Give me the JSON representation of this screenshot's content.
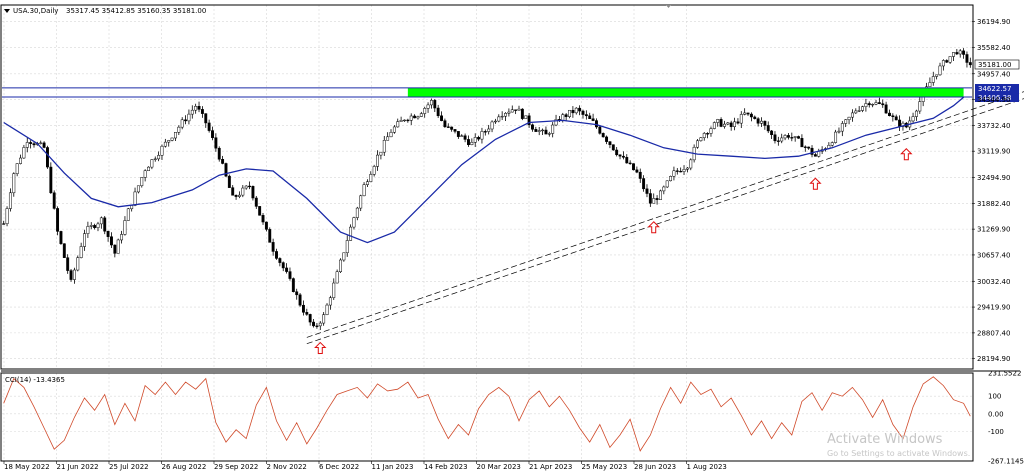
{
  "header": {
    "symbol_line": "USA.30,Daily",
    "ohlc": "35317.45 35412.85 35160.35 35181.00"
  },
  "colors": {
    "candle_fill": "#ffffff",
    "candle_line": "#000000",
    "ma_line": "#1a2aa8",
    "zone_green": "#00ff00",
    "level_line": "#1a2aa8",
    "cci_line": "#d04a2a",
    "arrow": "#e01010",
    "trend_line": "#000000",
    "grid": "#d8d8d8"
  },
  "watermark": {
    "line1": "Activate Windows",
    "line2": "Go to Settings to activate Windows."
  },
  "chart_data": [
    {
      "type": "candlestick",
      "x_tick_labels": [
        "18 May 2022",
        "21 Jun 2022",
        "25 Jul 2022",
        "26 Aug 2022",
        "29 Sep 2022",
        "2 Nov 2022",
        "6 Dec 2022",
        "11 Jan 2023",
        "14 Feb 2023",
        "20 Mar 2023",
        "21 Apr 2023",
        "25 May 2023",
        "28 Jun 2023",
        "1 Aug 2023"
      ],
      "y_tick_labels": [
        "36194.90",
        "35582.40",
        "34957.40",
        "34344.90",
        "33732.40",
        "33119.90",
        "32494.90",
        "31882.40",
        "31269.90",
        "30657.40",
        "30032.40",
        "29419.90",
        "28807.40",
        "28194.90"
      ],
      "ylim": [
        27950,
        36590
      ],
      "current_price_label": "35181.00",
      "levels": [
        {
          "label": "34622.57",
          "value": 34622.57
        },
        {
          "label": "34406.38",
          "value": 34406.38
        }
      ],
      "resistance_zone": {
        "from": 34406.38,
        "to": 34622.57,
        "start_index": 120,
        "end_index": 285
      },
      "support_touch_indices": [
        94,
        193,
        241,
        268
      ],
      "close_path": [
        {
          "i": 0,
          "v": 31400
        },
        {
          "i": 3,
          "v": 32600
        },
        {
          "i": 7,
          "v": 33400
        },
        {
          "i": 12,
          "v": 33200
        },
        {
          "i": 16,
          "v": 31200
        },
        {
          "i": 20,
          "v": 30000
        },
        {
          "i": 24,
          "v": 31200
        },
        {
          "i": 29,
          "v": 31500
        },
        {
          "i": 33,
          "v": 30700
        },
        {
          "i": 37,
          "v": 31700
        },
        {
          "i": 42,
          "v": 32700
        },
        {
          "i": 47,
          "v": 33200
        },
        {
          "i": 52,
          "v": 33700
        },
        {
          "i": 57,
          "v": 34200
        },
        {
          "i": 60,
          "v": 33800
        },
        {
          "i": 64,
          "v": 33000
        },
        {
          "i": 68,
          "v": 32000
        },
        {
          "i": 73,
          "v": 32300
        },
        {
          "i": 77,
          "v": 31400
        },
        {
          "i": 80,
          "v": 30800
        },
        {
          "i": 84,
          "v": 30200
        },
        {
          "i": 88,
          "v": 29500
        },
        {
          "i": 92,
          "v": 28900
        },
        {
          "i": 95,
          "v": 29200
        },
        {
          "i": 99,
          "v": 30200
        },
        {
          "i": 103,
          "v": 31300
        },
        {
          "i": 107,
          "v": 32300
        },
        {
          "i": 111,
          "v": 33000
        },
        {
          "i": 115,
          "v": 33600
        },
        {
          "i": 119,
          "v": 33900
        },
        {
          "i": 123,
          "v": 34000
        },
        {
          "i": 127,
          "v": 34300
        },
        {
          "i": 131,
          "v": 33700
        },
        {
          "i": 135,
          "v": 33500
        },
        {
          "i": 139,
          "v": 33300
        },
        {
          "i": 143,
          "v": 33600
        },
        {
          "i": 147,
          "v": 34000
        },
        {
          "i": 152,
          "v": 34150
        },
        {
          "i": 157,
          "v": 33700
        },
        {
          "i": 161,
          "v": 33500
        },
        {
          "i": 165,
          "v": 33900
        },
        {
          "i": 170,
          "v": 34100
        },
        {
          "i": 175,
          "v": 33800
        },
        {
          "i": 179,
          "v": 33400
        },
        {
          "i": 183,
          "v": 33000
        },
        {
          "i": 188,
          "v": 32600
        },
        {
          "i": 192,
          "v": 31900
        },
        {
          "i": 195,
          "v": 32100
        },
        {
          "i": 199,
          "v": 32600
        },
        {
          "i": 203,
          "v": 32800
        },
        {
          "i": 207,
          "v": 33500
        },
        {
          "i": 212,
          "v": 33800
        },
        {
          "i": 216,
          "v": 33700
        },
        {
          "i": 220,
          "v": 34000
        },
        {
          "i": 225,
          "v": 33800
        },
        {
          "i": 229,
          "v": 33400
        },
        {
          "i": 233,
          "v": 33500
        },
        {
          "i": 237,
          "v": 33300
        },
        {
          "i": 241,
          "v": 33000
        },
        {
          "i": 245,
          "v": 33300
        },
        {
          "i": 249,
          "v": 33700
        },
        {
          "i": 253,
          "v": 34100
        },
        {
          "i": 257,
          "v": 34300
        },
        {
          "i": 261,
          "v": 34200
        },
        {
          "i": 265,
          "v": 33800
        },
        {
          "i": 268,
          "v": 33700
        },
        {
          "i": 272,
          "v": 34300
        },
        {
          "i": 276,
          "v": 34900
        },
        {
          "i": 280,
          "v": 35300
        },
        {
          "i": 283,
          "v": 35500
        },
        {
          "i": 285,
          "v": 35350
        },
        {
          "i": 287,
          "v": 35181
        }
      ],
      "ma_path": [
        {
          "i": 0,
          "v": 33800
        },
        {
          "i": 10,
          "v": 33300
        },
        {
          "i": 18,
          "v": 32600
        },
        {
          "i": 26,
          "v": 32000
        },
        {
          "i": 34,
          "v": 31800
        },
        {
          "i": 44,
          "v": 31900
        },
        {
          "i": 56,
          "v": 32200
        },
        {
          "i": 64,
          "v": 32550
        },
        {
          "i": 72,
          "v": 32700
        },
        {
          "i": 80,
          "v": 32650
        },
        {
          "i": 90,
          "v": 32000
        },
        {
          "i": 100,
          "v": 31200
        },
        {
          "i": 108,
          "v": 30950
        },
        {
          "i": 116,
          "v": 31200
        },
        {
          "i": 126,
          "v": 32000
        },
        {
          "i": 136,
          "v": 32800
        },
        {
          "i": 146,
          "v": 33400
        },
        {
          "i": 156,
          "v": 33800
        },
        {
          "i": 166,
          "v": 33850
        },
        {
          "i": 176,
          "v": 33750
        },
        {
          "i": 186,
          "v": 33500
        },
        {
          "i": 196,
          "v": 33200
        },
        {
          "i": 206,
          "v": 33050
        },
        {
          "i": 216,
          "v": 33000
        },
        {
          "i": 226,
          "v": 32950
        },
        {
          "i": 236,
          "v": 33000
        },
        {
          "i": 246,
          "v": 33200
        },
        {
          "i": 256,
          "v": 33500
        },
        {
          "i": 266,
          "v": 33700
        },
        {
          "i": 276,
          "v": 33900
        },
        {
          "i": 282,
          "v": 34200
        },
        {
          "i": 285,
          "v": 34400
        }
      ],
      "trend_lines": [
        {
          "from": {
            "i": 90,
            "v": 28700
          },
          "to": {
            "i": 378,
            "v": 36590
          }
        },
        {
          "from": {
            "i": 90,
            "v": 28550
          },
          "to": {
            "i": 378,
            "v": 36420
          }
        }
      ]
    },
    {
      "type": "line",
      "indicator_label": "CCI(14) -13.4365",
      "y_tick_labels": [
        "231.5522",
        "100",
        "0.00",
        "-100",
        "-267.1145"
      ],
      "ylim": [
        -267.1145,
        231.5522
      ],
      "path": [
        {
          "i": 0,
          "v": 60
        },
        {
          "i": 3,
          "v": 200
        },
        {
          "i": 6,
          "v": 150
        },
        {
          "i": 9,
          "v": 40
        },
        {
          "i": 12,
          "v": -80
        },
        {
          "i": 15,
          "v": -200
        },
        {
          "i": 18,
          "v": -150
        },
        {
          "i": 21,
          "v": -20
        },
        {
          "i": 24,
          "v": 90
        },
        {
          "i": 27,
          "v": 20
        },
        {
          "i": 30,
          "v": 110
        },
        {
          "i": 33,
          "v": -60
        },
        {
          "i": 36,
          "v": 60
        },
        {
          "i": 39,
          "v": -40
        },
        {
          "i": 42,
          "v": 160
        },
        {
          "i": 45,
          "v": 110
        },
        {
          "i": 48,
          "v": 180
        },
        {
          "i": 51,
          "v": 110
        },
        {
          "i": 54,
          "v": 180
        },
        {
          "i": 57,
          "v": 140
        },
        {
          "i": 60,
          "v": 200
        },
        {
          "i": 63,
          "v": -50
        },
        {
          "i": 66,
          "v": -160
        },
        {
          "i": 69,
          "v": -90
        },
        {
          "i": 72,
          "v": -140
        },
        {
          "i": 75,
          "v": 50
        },
        {
          "i": 78,
          "v": 150
        },
        {
          "i": 81,
          "v": -40
        },
        {
          "i": 84,
          "v": -150
        },
        {
          "i": 87,
          "v": -50
        },
        {
          "i": 90,
          "v": -170
        },
        {
          "i": 93,
          "v": -80
        },
        {
          "i": 96,
          "v": 20
        },
        {
          "i": 99,
          "v": 110
        },
        {
          "i": 102,
          "v": 130
        },
        {
          "i": 105,
          "v": 150
        },
        {
          "i": 108,
          "v": 90
        },
        {
          "i": 111,
          "v": 170
        },
        {
          "i": 114,
          "v": 130
        },
        {
          "i": 117,
          "v": 140
        },
        {
          "i": 120,
          "v": 180
        },
        {
          "i": 123,
          "v": 90
        },
        {
          "i": 126,
          "v": 110
        },
        {
          "i": 129,
          "v": -30
        },
        {
          "i": 132,
          "v": -140
        },
        {
          "i": 135,
          "v": -60
        },
        {
          "i": 138,
          "v": -120
        },
        {
          "i": 141,
          "v": 30
        },
        {
          "i": 144,
          "v": 110
        },
        {
          "i": 147,
          "v": 150
        },
        {
          "i": 150,
          "v": 100
        },
        {
          "i": 153,
          "v": -40
        },
        {
          "i": 156,
          "v": 80
        },
        {
          "i": 159,
          "v": 130
        },
        {
          "i": 162,
          "v": 40
        },
        {
          "i": 165,
          "v": 100
        },
        {
          "i": 168,
          "v": 20
        },
        {
          "i": 171,
          "v": -80
        },
        {
          "i": 174,
          "v": -160
        },
        {
          "i": 177,
          "v": -60
        },
        {
          "i": 180,
          "v": -190
        },
        {
          "i": 183,
          "v": -120
        },
        {
          "i": 186,
          "v": -30
        },
        {
          "i": 189,
          "v": -210
        },
        {
          "i": 192,
          "v": -120
        },
        {
          "i": 195,
          "v": 30
        },
        {
          "i": 198,
          "v": 150
        },
        {
          "i": 201,
          "v": 60
        },
        {
          "i": 204,
          "v": 180
        },
        {
          "i": 207,
          "v": 110
        },
        {
          "i": 210,
          "v": 140
        },
        {
          "i": 213,
          "v": 40
        },
        {
          "i": 216,
          "v": 90
        },
        {
          "i": 219,
          "v": -10
        },
        {
          "i": 222,
          "v": -120
        },
        {
          "i": 225,
          "v": -40
        },
        {
          "i": 228,
          "v": -140
        },
        {
          "i": 231,
          "v": -50
        },
        {
          "i": 234,
          "v": -120
        },
        {
          "i": 237,
          "v": 70
        },
        {
          "i": 240,
          "v": 120
        },
        {
          "i": 243,
          "v": 20
        },
        {
          "i": 246,
          "v": 120
        },
        {
          "i": 249,
          "v": 100
        },
        {
          "i": 252,
          "v": 150
        },
        {
          "i": 255,
          "v": 80
        },
        {
          "i": 258,
          "v": -20
        },
        {
          "i": 261,
          "v": 80
        },
        {
          "i": 264,
          "v": -60
        },
        {
          "i": 267,
          "v": -140
        },
        {
          "i": 270,
          "v": 40
        },
        {
          "i": 273,
          "v": 170
        },
        {
          "i": 276,
          "v": 210
        },
        {
          "i": 279,
          "v": 160
        },
        {
          "i": 282,
          "v": 80
        },
        {
          "i": 285,
          "v": 60
        },
        {
          "i": 287,
          "v": -13.4
        }
      ]
    }
  ]
}
